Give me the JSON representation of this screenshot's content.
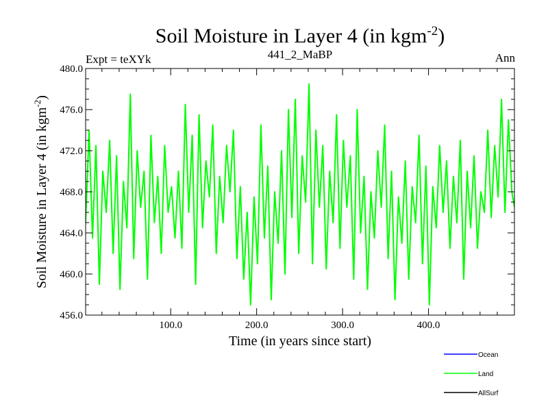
{
  "chart_data": {
    "type": "line",
    "title": "Soil Moisture in Layer 4 (in kgm",
    "title_sup": "-2",
    "title_end": ")",
    "subtitle_left": "Expt = teXYk",
    "subtitle_center": "441_2_MaBP",
    "subtitle_right": "Ann",
    "xlabel": "Time (in years since start)",
    "ylabel": "Soil Moisture in Layer 4 (in kgm",
    "ylabel_sup": "-2",
    "ylabel_end": ")",
    "xlim": [
      1,
      500
    ],
    "ylim": [
      456.0,
      480.0
    ],
    "xticks": [
      100,
      200,
      300,
      400
    ],
    "xtick_labels": [
      "100.0",
      "200.0",
      "300.0",
      "400.0"
    ],
    "yticks": [
      456,
      460,
      464,
      468,
      472,
      476,
      480
    ],
    "ytick_labels": [
      "456.0",
      "460.0",
      "464.0",
      "468.0",
      "472.0",
      "476.0",
      "480.0"
    ],
    "series": [
      {
        "name": "Land",
        "color": "#00ff00",
        "x": [
          1,
          5,
          9,
          13,
          17,
          21,
          25,
          29,
          33,
          37,
          41,
          45,
          49,
          53,
          57,
          61,
          65,
          69,
          73,
          77,
          81,
          85,
          89,
          93,
          97,
          101,
          105,
          109,
          113,
          117,
          121,
          125,
          129,
          133,
          137,
          141,
          145,
          149,
          153,
          157,
          161,
          165,
          169,
          173,
          177,
          181,
          185,
          189,
          193,
          197,
          201,
          205,
          209,
          213,
          217,
          221,
          225,
          229,
          233,
          237,
          241,
          245,
          249,
          253,
          257,
          261,
          265,
          269,
          273,
          277,
          281,
          285,
          289,
          293,
          297,
          301,
          305,
          309,
          313,
          317,
          321,
          325,
          329,
          333,
          337,
          341,
          345,
          349,
          353,
          357,
          361,
          365,
          369,
          373,
          377,
          381,
          385,
          389,
          393,
          397,
          401,
          405,
          409,
          413,
          417,
          421,
          425,
          429,
          433,
          437,
          441,
          445,
          449,
          453,
          457,
          461,
          465,
          469,
          473,
          477,
          481,
          485,
          489,
          493,
          497,
          500
        ],
        "values": [
          465.0,
          474.0,
          463.5,
          472.5,
          459.0,
          470.0,
          466.0,
          473.0,
          462.0,
          471.5,
          458.5,
          469.0,
          464.5,
          477.5,
          461.5,
          472.0,
          466.5,
          470.0,
          459.5,
          473.5,
          465.0,
          469.5,
          462.0,
          472.5,
          466.0,
          468.5,
          463.5,
          470.0,
          462.5,
          476.5,
          466.0,
          473.5,
          459.0,
          475.5,
          464.5,
          471.0,
          467.5,
          474.5,
          462.0,
          469.5,
          465.0,
          472.5,
          468.0,
          474.0,
          461.5,
          468.5,
          459.5,
          466.0,
          457.0,
          467.5,
          461.0,
          474.5,
          463.5,
          470.5,
          457.5,
          468.0,
          463.0,
          472.0,
          460.0,
          476.0,
          465.5,
          477.0,
          462.0,
          471.5,
          467.0,
          478.5,
          461.0,
          474.0,
          466.5,
          472.5,
          460.5,
          470.0,
          465.0,
          475.5,
          462.5,
          473.0,
          466.5,
          471.5,
          459.5,
          476.0,
          464.0,
          469.5,
          458.5,
          468.0,
          463.5,
          472.0,
          466.5,
          474.5,
          461.5,
          470.0,
          457.5,
          467.5,
          463.0,
          471.0,
          459.5,
          468.5,
          465.0,
          473.5,
          461.0,
          470.5,
          457.0,
          468.5,
          464.5,
          472.5,
          466.0,
          471.0,
          462.5,
          469.5,
          465.0,
          473.0,
          459.5,
          470.0,
          464.5,
          471.5,
          462.5,
          468.0,
          466.0,
          474.0,
          465.5,
          472.5,
          467.5,
          477.0,
          466.0,
          475.0,
          468.0,
          466.5
        ]
      }
    ],
    "legend": [
      {
        "label": "Ocean",
        "color": "#0000ff"
      },
      {
        "label": "Land",
        "color": "#00ff00"
      },
      {
        "label": "AllSurf",
        "color": "#000000"
      }
    ],
    "legend_position": "bottom-right",
    "grid": false
  }
}
